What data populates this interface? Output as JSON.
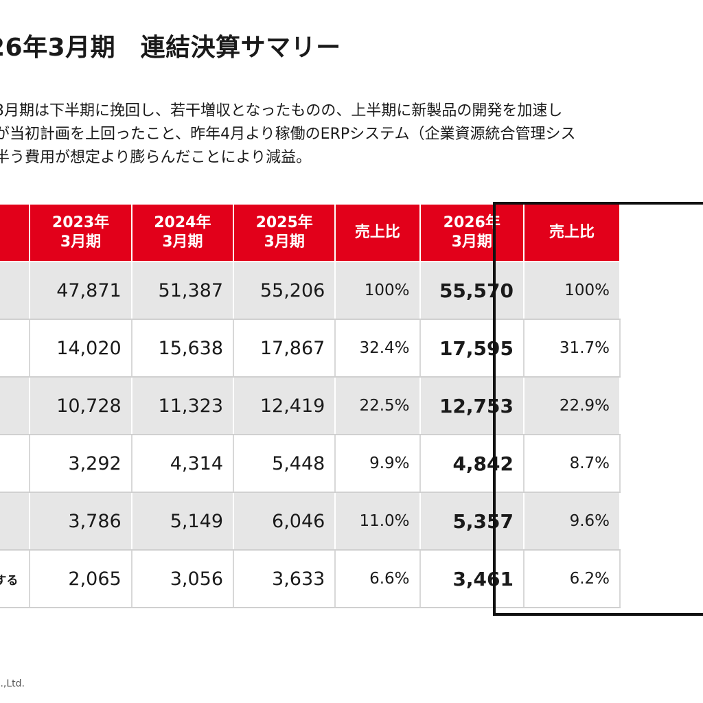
{
  "title": "26年3月期　連結決算サマリー",
  "summary": [
    "3月期は下半期に挽回し、若干増収となったものの、上半期に新製品の開発を加速し",
    "が当初計画を上回ったこと、昨年4月より稼働のERPシステム（企業資源統合管理シス",
    "半う費用が想定より膨らんだことにより減益。"
  ],
  "table": {
    "headers": [
      {
        "line1": "2023年",
        "line2": "3月期"
      },
      {
        "line1": "2024年",
        "line2": "3月期"
      },
      {
        "line1": "2025年",
        "line2": "3月期"
      },
      {
        "line1": "売上比",
        "line2": ""
      },
      {
        "line1": "2026年",
        "line2": "3月期"
      },
      {
        "line1": "売上比",
        "line2": ""
      }
    ],
    "rows": [
      {
        "label": "",
        "v2023": "47,871",
        "v2024": "51,387",
        "v2025": "55,206",
        "r2025": "100%",
        "v2026": "55,570",
        "r2026": "100%"
      },
      {
        "label": "",
        "v2023": "14,020",
        "v2024": "15,638",
        "v2025": "17,867",
        "r2025": "32.4%",
        "v2026": "17,595",
        "r2026": "31.7%"
      },
      {
        "label": "",
        "v2023": "10,728",
        "v2024": "11,323",
        "v2025": "12,419",
        "r2025": "22.5%",
        "v2026": "12,753",
        "r2026": "22.9%"
      },
      {
        "label": "",
        "v2023": "3,292",
        "v2024": "4,314",
        "v2025": "5,448",
        "r2025": "9.9%",
        "v2026": "4,842",
        "r2026": "8.7%"
      },
      {
        "label": "",
        "v2023": "3,786",
        "v2024": "5,149",
        "v2025": "6,046",
        "r2025": "11.0%",
        "v2026": "5,357",
        "r2026": "9.6%"
      },
      {
        "label": "帰属する",
        "v2023": "2,065",
        "v2024": "3,056",
        "v2025": "3,633",
        "r2025": "6.6%",
        "v2026": "3,461",
        "r2026": "6.2%"
      }
    ]
  },
  "footer": "..,Ltd.",
  "colors": {
    "header_red": "#e2001a",
    "row_shade": "#e6e6e6",
    "box_border": "#111111"
  }
}
